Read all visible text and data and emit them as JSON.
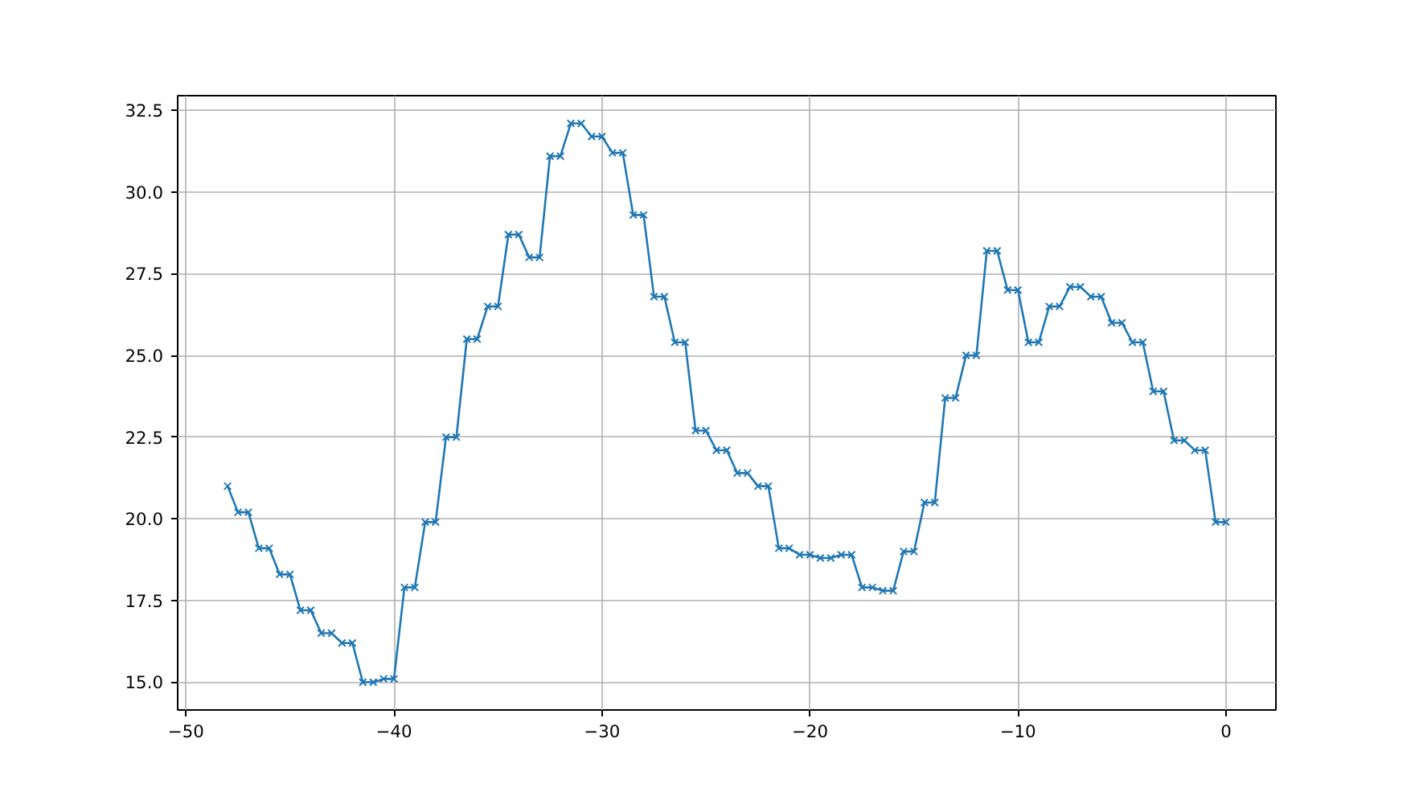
{
  "chart_data": {
    "type": "line",
    "color": "#1f77b4",
    "marker": "cross",
    "line_style": "solid",
    "grid": true,
    "x": [
      -48,
      -47.5,
      -47,
      -46.5,
      -46,
      -45.5,
      -45,
      -44.5,
      -44,
      -43.5,
      -43,
      -42.5,
      -42,
      -41.5,
      -41,
      -40.5,
      -40,
      -39.5,
      -39,
      -38.5,
      -38,
      -37.5,
      -37,
      -36.5,
      -36,
      -35.5,
      -35,
      -34.5,
      -34,
      -33.5,
      -33,
      -32.5,
      -32,
      -31.5,
      -31,
      -30.5,
      -30,
      -29.5,
      -29,
      -28.5,
      -28,
      -27.5,
      -27,
      -26.5,
      -26,
      -25.5,
      -25,
      -24.5,
      -24,
      -23.5,
      -23,
      -22.5,
      -22,
      -21.5,
      -21,
      -20.5,
      -20,
      -19.5,
      -19,
      -18.5,
      -18,
      -17.5,
      -17,
      -16.5,
      -16,
      -15.5,
      -15,
      -14.5,
      -14,
      -13.5,
      -13,
      -12.5,
      -12,
      -11.5,
      -11,
      -10.5,
      -10,
      -9.5,
      -9,
      -8.5,
      -8,
      -7.5,
      -7,
      -6.5,
      -6,
      -5.5,
      -5,
      -4.5,
      -4,
      -3.5,
      -3,
      -2.5,
      -2,
      -1.5,
      -1,
      -0.5,
      0
    ],
    "values": [
      21.0,
      20.2,
      20.2,
      19.1,
      19.1,
      18.3,
      18.3,
      17.2,
      17.2,
      16.5,
      16.5,
      16.2,
      16.2,
      15.0,
      15.0,
      15.1,
      15.1,
      17.9,
      17.9,
      19.9,
      19.9,
      22.5,
      22.5,
      25.5,
      25.5,
      26.5,
      26.5,
      28.7,
      28.7,
      28.0,
      28.0,
      31.1,
      31.1,
      32.1,
      32.1,
      31.7,
      31.7,
      31.2,
      31.2,
      29.3,
      29.3,
      26.8,
      26.8,
      25.4,
      25.4,
      22.7,
      22.7,
      22.1,
      22.1,
      21.4,
      21.4,
      21.0,
      21.0,
      19.1,
      19.1,
      18.9,
      18.9,
      18.8,
      18.8,
      18.9,
      18.9,
      17.9,
      17.9,
      17.8,
      17.8,
      19.0,
      19.0,
      20.5,
      20.5,
      23.7,
      23.7,
      25.0,
      25.0,
      28.2,
      28.2,
      27.0,
      27.0,
      25.4,
      25.4,
      26.5,
      26.5,
      27.1,
      27.1,
      26.8,
      26.8,
      26.0,
      26.0,
      25.4,
      25.4,
      23.9,
      23.9,
      22.4,
      22.4,
      22.1,
      22.1,
      19.9,
      19.9
    ],
    "xlim": [
      -50.4,
      2.4
    ],
    "ylim": [
      14.15,
      32.95
    ],
    "xticks": [
      {
        "value": -50,
        "label": "−50"
      },
      {
        "value": -40,
        "label": "−40"
      },
      {
        "value": -30,
        "label": "−30"
      },
      {
        "value": -20,
        "label": "−20"
      },
      {
        "value": -10,
        "label": "−10"
      },
      0
    ],
    "yticks": [
      {
        "value": 15,
        "label": "15.0"
      },
      {
        "value": 17.5,
        "label": "17.5"
      },
      {
        "value": 20,
        "label": "20.0"
      },
      {
        "value": 22.5,
        "label": "22.5"
      },
      {
        "value": 25,
        "label": "25.0"
      },
      {
        "value": 27.5,
        "label": "27.5"
      },
      {
        "value": 30,
        "label": "30.0"
      },
      {
        "value": 32.5,
        "label": "32.5"
      }
    ]
  }
}
